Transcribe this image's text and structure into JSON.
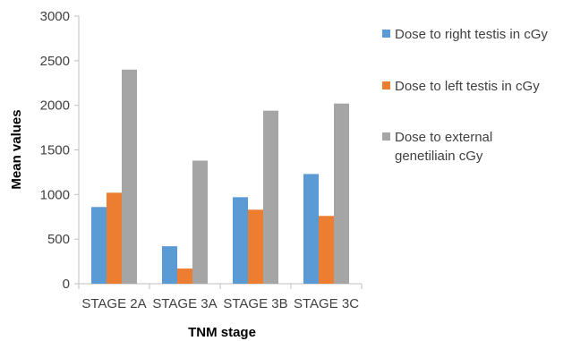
{
  "chart_data": {
    "type": "bar",
    "title": "",
    "xlabel": "TNM stage",
    "ylabel": "Mean values",
    "categories": [
      "STAGE 2A",
      "STAGE 3A",
      "STAGE 3B",
      "STAGE 3C"
    ],
    "series": [
      {
        "name": "Dose to right testis in cGy",
        "color": "#5B9BD5",
        "values": [
          860,
          420,
          970,
          1230
        ]
      },
      {
        "name": "Dose to left testis in cGy",
        "color": "#ED7D31",
        "values": [
          1020,
          170,
          830,
          760
        ]
      },
      {
        "name": "Dose to external genetiliain cGy",
        "legend_lines": [
          "Dose to external",
          "genetiliain cGy"
        ],
        "color": "#A5A5A5",
        "values": [
          2400,
          1380,
          1940,
          2020
        ]
      }
    ],
    "ylim": [
      0,
      3000
    ],
    "yticks": [
      0,
      500,
      1000,
      1500,
      2000,
      2500,
      3000
    ],
    "grid": false,
    "legend_position": "right"
  }
}
